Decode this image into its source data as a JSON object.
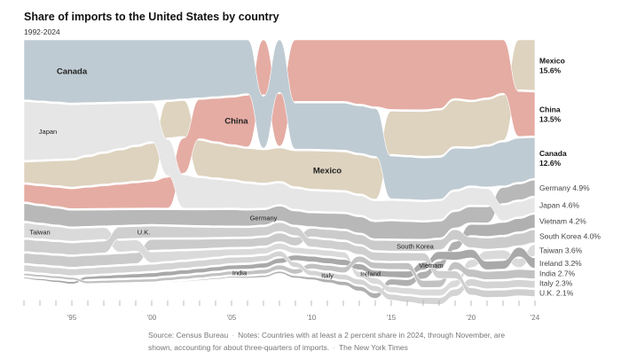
{
  "chart_data": {
    "type": "area",
    "title": "Share of imports to the United States by country",
    "subtitle": "1992-2024",
    "unit": "%",
    "xlim": [
      1992,
      2024
    ],
    "x_tick_labels": [
      {
        "year": 1995,
        "label": "'95"
      },
      {
        "year": 2000,
        "label": "'00"
      },
      {
        "year": 2005,
        "label": "'05"
      },
      {
        "year": 2010,
        "label": "'10"
      },
      {
        "year": 2015,
        "label": "'15"
      },
      {
        "year": 2020,
        "label": "'20"
      },
      {
        "year": 2024,
        "label": "'24"
      }
    ],
    "series": [
      {
        "name": "Mexico",
        "final_label": "15.6%",
        "bold": true,
        "color": "#ded3bf",
        "shares": {
          "1992": 6.3,
          "1995": 8.3,
          "2000": 11.2,
          "2003": 11.0,
          "2005": 10.2,
          "2008": 10.3,
          "2010": 11.8,
          "2013": 12.0,
          "2015": 13.3,
          "2019": 14.3,
          "2020": 13.9,
          "2022": 14.0,
          "2023": 15.4,
          "2024": 15.6
        }
      },
      {
        "name": "China",
        "final_label": "13.5%",
        "bold": true,
        "color": "#e5aca3",
        "shares": {
          "1992": 5.4,
          "1995": 6.1,
          "2000": 8.2,
          "2003": 12.1,
          "2005": 14.6,
          "2006": 15.9,
          "2007": 16.9,
          "2008": 16.1,
          "2009": 19.0,
          "2012": 19.0,
          "2015": 21.5,
          "2017": 21.6,
          "2018": 21.2,
          "2019": 18.1,
          "2020": 18.6,
          "2021": 17.9,
          "2022": 16.5,
          "2023": 13.9,
          "2024": 13.5
        }
      },
      {
        "name": "Canada",
        "final_label": "12.6%",
        "bold": true,
        "color": "#bfcbd3",
        "shares": {
          "1992": 18.5,
          "1995": 19.5,
          "2000": 18.9,
          "2005": 17.2,
          "2006": 16.6,
          "2007": 16.0,
          "2008": 16.2,
          "2009": 14.2,
          "2010": 14.2,
          "2014": 14.8,
          "2015": 13.2,
          "2019": 12.8,
          "2020": 11.5,
          "2022": 13.5,
          "2023": 13.6,
          "2024": 12.6
        }
      },
      {
        "name": "Germany",
        "final_label": "4.9%",
        "bold": false,
        "color": "#b8b8b8",
        "shares": {
          "1992": 5.4,
          "2000": 4.5,
          "2005": 5.0,
          "2010": 4.2,
          "2015": 5.5,
          "2020": 4.9,
          "2024": 4.9
        }
      },
      {
        "name": "Japan",
        "final_label": "4.6%",
        "bold": false,
        "color": "#e6e6e6",
        "shares": {
          "1992": 18.2,
          "1995": 16.6,
          "2000": 12.0,
          "2003": 9.4,
          "2005": 8.3,
          "2008": 6.6,
          "2010": 6.3,
          "2015": 5.8,
          "2019": 5.7,
          "2022": 4.8,
          "2024": 4.6
        }
      },
      {
        "name": "Vietnam",
        "final_label": "4.2%",
        "bold": false,
        "color": "#b0b0b0",
        "shares": {
          "1992": 0.0,
          "2000": 0.1,
          "2005": 0.4,
          "2010": 0.8,
          "2015": 1.8,
          "2019": 2.6,
          "2020": 3.4,
          "2022": 3.9,
          "2024": 4.2
        }
      },
      {
        "name": "South Korea",
        "final_label": "4.0%",
        "bold": false,
        "color": "#cbcbcb",
        "shares": {
          "1992": 3.1,
          "1995": 3.3,
          "2000": 3.3,
          "2005": 2.6,
          "2010": 2.6,
          "2015": 3.2,
          "2019": 3.1,
          "2022": 3.5,
          "2024": 4.0
        }
      },
      {
        "name": "Taiwan",
        "final_label": "3.6%",
        "bold": false,
        "color": "#dadada",
        "shares": {
          "1992": 4.6,
          "1995": 3.9,
          "2000": 3.3,
          "2005": 2.0,
          "2010": 1.8,
          "2015": 1.8,
          "2019": 2.2,
          "2021": 2.7,
          "2023": 2.8,
          "2024": 3.6
        }
      },
      {
        "name": "Ireland",
        "final_label": "3.2%",
        "bold": false,
        "color": "#a9a9a9",
        "shares": {
          "1992": 0.4,
          "2000": 1.3,
          "2005": 1.3,
          "2010": 1.7,
          "2015": 1.9,
          "2019": 2.6,
          "2022": 2.6,
          "2024": 3.2
        }
      },
      {
        "name": "India",
        "final_label": "2.7%",
        "bold": false,
        "color": "#c2c2c2",
        "shares": {
          "1992": 0.7,
          "2000": 0.9,
          "2005": 1.1,
          "2010": 1.6,
          "2015": 2.0,
          "2019": 2.3,
          "2022": 2.6,
          "2024": 2.7
        }
      },
      {
        "name": "Italy",
        "final_label": "2.3%",
        "bold": false,
        "color": "#d4d4d4",
        "shares": {
          "1992": 2.0,
          "2000": 2.1,
          "2005": 1.9,
          "2010": 1.5,
          "2015": 1.8,
          "2019": 2.2,
          "2024": 2.3
        }
      },
      {
        "name": "U.K.",
        "final_label": "2.1%",
        "bold": false,
        "color": "#cfcfcf",
        "shares": {
          "1992": 3.7,
          "2000": 3.6,
          "2005": 2.9,
          "2010": 2.6,
          "2015": 2.6,
          "2020": 2.2,
          "2024": 2.1
        }
      }
    ]
  },
  "footer": {
    "source": "Source: Census Bureau",
    "notes": "Notes: Countries with at least a 2 percent share in 2024, through November, are shown, accounting for about three-quarters of imports.",
    "credit": "The New York Times"
  }
}
